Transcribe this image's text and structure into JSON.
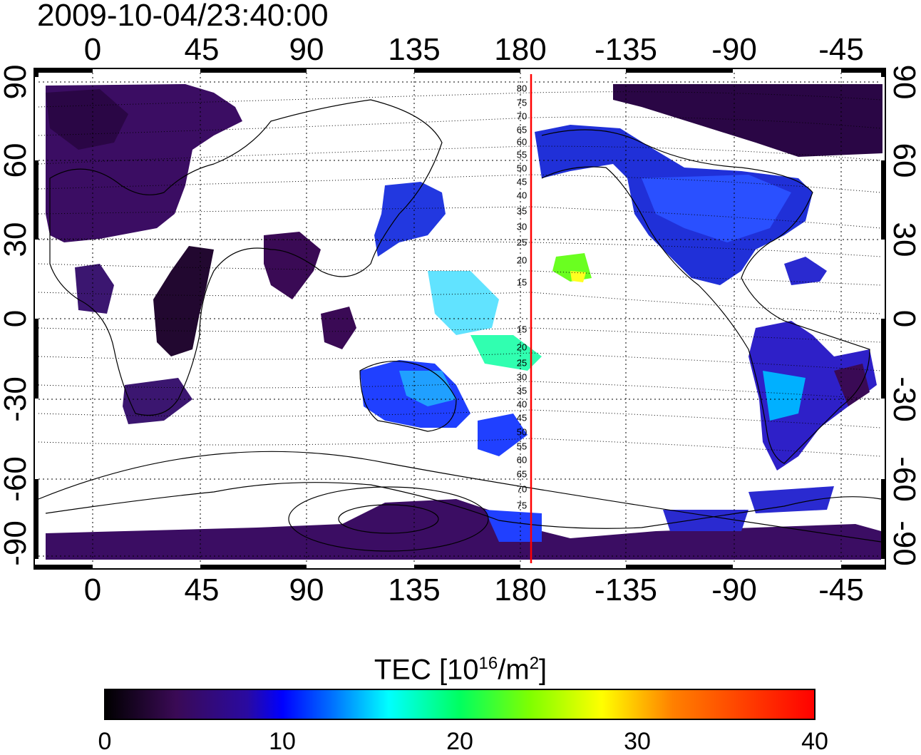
{
  "title": "2009-10-04/23:40:00",
  "map": {
    "x_ticks": [
      "0",
      "45",
      "90",
      "135",
      "180",
      "-135",
      "-90",
      "-45"
    ],
    "y_ticks": [
      "90",
      "60",
      "30",
      "0",
      "-30",
      "-60",
      "-90"
    ],
    "meridian_line_color": "#ff0000",
    "mlat_labels_north": [
      "80",
      "75",
      "70",
      "65",
      "60",
      "55",
      "50",
      "45",
      "40",
      "35",
      "30",
      "25",
      "20",
      "15"
    ],
    "mlat_labels_south": [
      "15",
      "20",
      "25",
      "30",
      "35",
      "40",
      "45",
      "50",
      "55",
      "60",
      "65",
      "70",
      "75"
    ]
  },
  "colorbar": {
    "label": "TEC  [10",
    "label_sup1": "16",
    "label_mid": "/m",
    "label_sup2": "2",
    "label_end": "]",
    "ticks": [
      "0",
      "10",
      "20",
      "30",
      "40"
    ],
    "range": [
      0,
      40
    ],
    "colors": [
      "#000000",
      "#3a0a55",
      "#2a0aa0",
      "#0000ff",
      "#0090ff",
      "#00ffff",
      "#00ff60",
      "#60ff00",
      "#ffff00",
      "#ff8000",
      "#ff0000"
    ]
  }
}
